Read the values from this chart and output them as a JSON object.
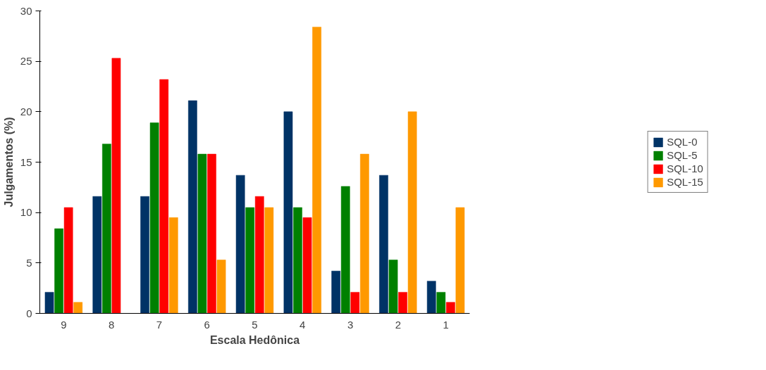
{
  "chart_data": {
    "type": "bar",
    "xlabel": "Escala Hedônica",
    "ylabel": "Julgamentos (%)",
    "categories": [
      "9",
      "8",
      "7",
      "6",
      "5",
      "4",
      "3",
      "2",
      "1"
    ],
    "series": [
      {
        "name": "SQL-0",
        "color": "#003366",
        "values": [
          2.1,
          11.6,
          11.6,
          21.1,
          13.7,
          20.0,
          4.2,
          13.7,
          3.2
        ]
      },
      {
        "name": "SQL-5",
        "color": "#008000",
        "values": [
          8.4,
          16.8,
          18.9,
          15.8,
          10.5,
          10.5,
          12.6,
          5.3,
          2.1
        ]
      },
      {
        "name": "SQL-10",
        "color": "#ff0000",
        "values": [
          10.5,
          25.3,
          23.2,
          15.8,
          11.6,
          9.5,
          2.1,
          2.1,
          1.1
        ]
      },
      {
        "name": "SQL-15",
        "color": "#ff9900",
        "values": [
          1.1,
          0,
          9.5,
          5.3,
          10.5,
          28.4,
          15.8,
          20.0,
          10.5
        ]
      }
    ],
    "ylim": [
      0,
      30
    ],
    "yticks": [
      0,
      5,
      10,
      15,
      20,
      25,
      30
    ],
    "grid": false,
    "legend": "right"
  }
}
